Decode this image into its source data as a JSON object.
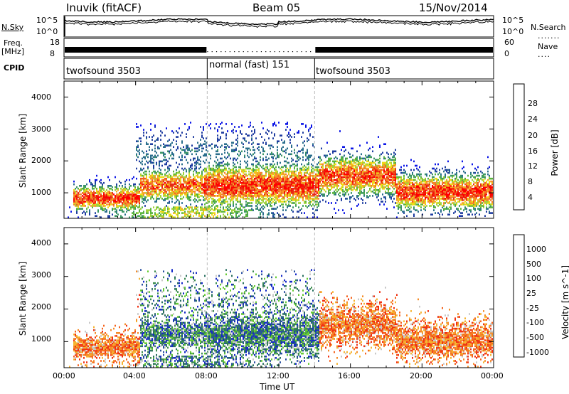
{
  "header": {
    "station": "Inuvik (fitACF)",
    "beam": "Beam 05",
    "date": "15/Nov/2014"
  },
  "strip_labels": {
    "nsky": "N.Sky",
    "nsky_ticks": [
      "10^5",
      "10^0"
    ],
    "nsearch": "N.Search",
    "nsearch_ticks": [
      "10^5",
      "10^0"
    ],
    "freq_line1": "Freq.",
    "freq_line2": "[MHz]",
    "freq_ticks": [
      "18",
      "8"
    ],
    "nave": "Nave",
    "nave_ticks": [
      "60",
      "0"
    ],
    "cpid": "CPID"
  },
  "cpid_segments": [
    {
      "label": "twofsound 3503",
      "start_hour": 0,
      "end_hour": 8
    },
    {
      "label": "normal (fast) 151",
      "start_hour": 8,
      "end_hour": 14
    },
    {
      "label": "twofsound 3503",
      "start_hour": 14,
      "end_hour": 24
    }
  ],
  "colors": {
    "power_scale": [
      "#0a14e6",
      "#1e3ca0",
      "#2a6e8c",
      "#3c9664",
      "#5ab43c",
      "#a0d23c",
      "#f0dc14",
      "#f5aa28",
      "#f5822d",
      "#f05a1e",
      "#e62814",
      "#ff0000"
    ],
    "velocity_scale": [
      "#ff0000",
      "#f03214",
      "#f5641e",
      "#f58c28",
      "#f5b432",
      "#c8c8c8",
      "#c8c8c8",
      "#66cc33",
      "#3c8c50",
      "#2a7060",
      "#2850a0",
      "#1428c8"
    ]
  },
  "chart_data": [
    {
      "type": "heatmap",
      "title": "",
      "xlabel": "",
      "ylabel": "Slant Range [km]",
      "colorbar_label": "Power [dB]",
      "colorbar_ticks": [
        "28",
        "24",
        "20",
        "16",
        "12",
        "8",
        "4"
      ],
      "colorbar_range": [
        0,
        30
      ],
      "xlim_hours": [
        0,
        24
      ],
      "ylim_km": [
        200,
        4500
      ],
      "yticks": [
        "1000",
        "2000",
        "3000",
        "4000"
      ],
      "xticks": [
        "00:00",
        "04:00",
        "08:00",
        "12:00",
        "16:00",
        "20:00",
        "00:00"
      ]
    },
    {
      "type": "heatmap",
      "title": "",
      "xlabel": "Time UT",
      "ylabel": "Slant Range [km]",
      "colorbar_label": "Velocity [m s^-1]",
      "colorbar_ticks": [
        "1000",
        "500",
        "100",
        "25",
        "-25",
        "-100",
        "-500",
        "-1000"
      ],
      "colorbar_range": [
        -1000,
        1000
      ],
      "xlim_hours": [
        0,
        24
      ],
      "ylim_km": [
        200,
        4500
      ],
      "yticks": [
        "1000",
        "2000",
        "3000",
        "4000"
      ],
      "xticks": [
        "00:00",
        "04:00",
        "08:00",
        "12:00",
        "16:00",
        "20:00",
        "00:00"
      ]
    }
  ]
}
